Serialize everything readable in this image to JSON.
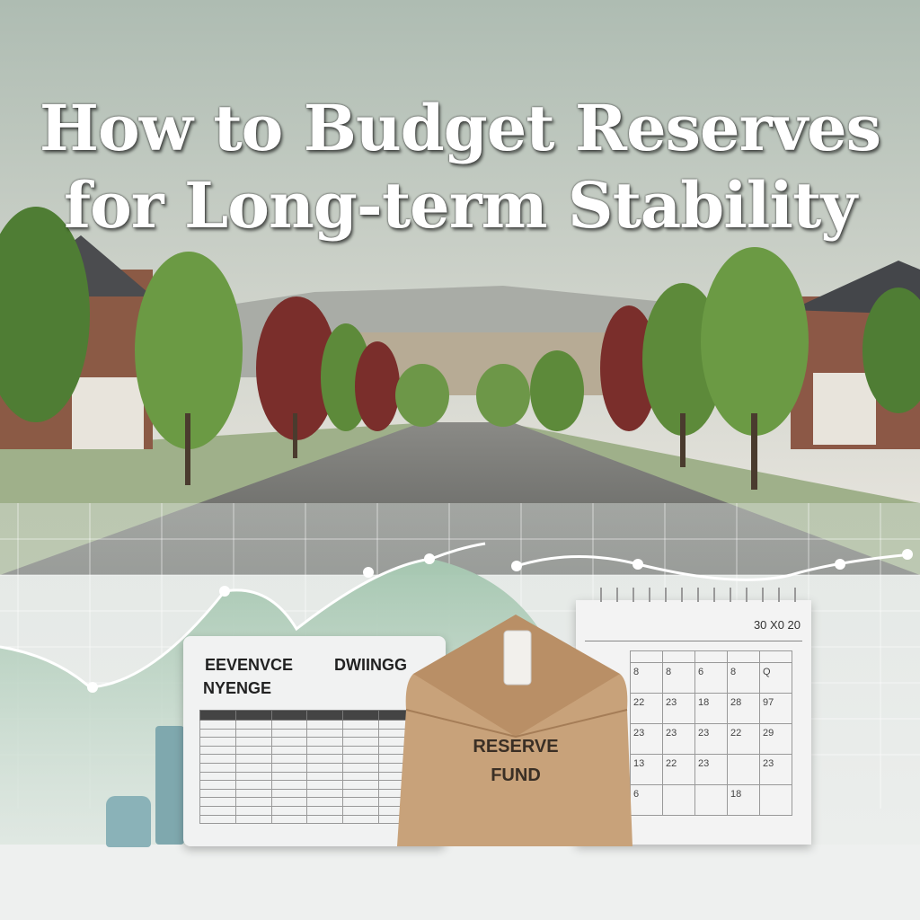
{
  "title": {
    "line1": "How to Budget Reserves",
    "line2": "for Long-term Stability"
  },
  "card": {
    "heading_left": "EEVENVCE",
    "heading_right": "DWIINGG",
    "subheading": "NYENGE",
    "columns": [
      "",
      "",
      "",
      "",
      "",
      ""
    ],
    "row_count": 13
  },
  "envelope": {
    "label_line1": "RESERVE",
    "label_line2": "FUND"
  },
  "calendar": {
    "year": "30 X0 20",
    "rows": [
      [
        "",
        "",
        "",
        "",
        ""
      ],
      [
        "8",
        "8",
        "6",
        "8",
        "Q"
      ],
      [
        "22",
        "23",
        "18",
        "28",
        "97"
      ],
      [
        "23",
        "23",
        "23",
        "22",
        "29"
      ],
      [
        "13",
        "22",
        "23",
        "",
        "23"
      ],
      [
        "6",
        "",
        "",
        "18",
        ""
      ]
    ]
  },
  "colors": {
    "sky": "#b9c7bd",
    "road": "#6b6b68",
    "envelope": "#c8a27a",
    "chart_fill": "#a9c8b3",
    "tree_green": "#5d8a3a",
    "tree_red": "#7a2e2b"
  }
}
